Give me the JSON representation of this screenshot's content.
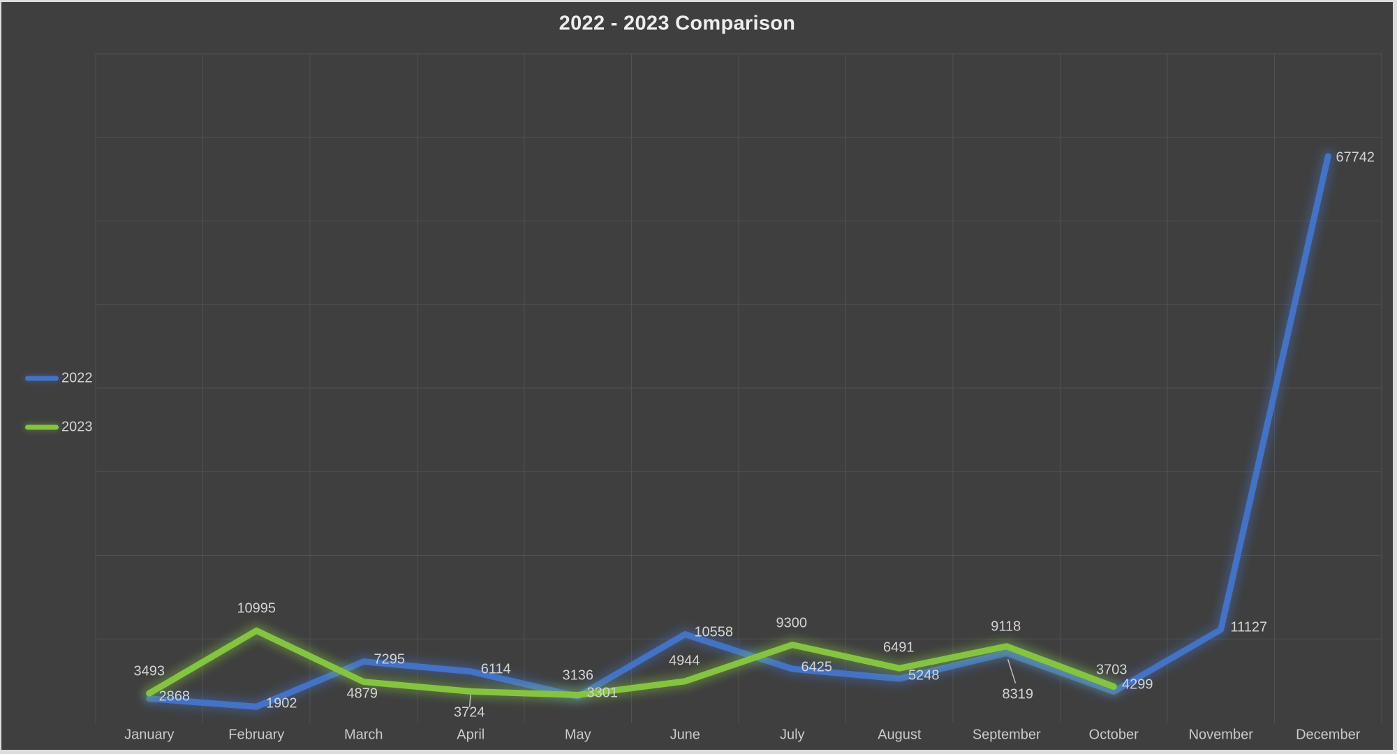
{
  "chart_data": {
    "type": "line",
    "title": "2022 - 2023 Comparison",
    "categories": [
      "January",
      "February",
      "March",
      "April",
      "May",
      "June",
      "July",
      "August",
      "September",
      "October",
      "November",
      "December"
    ],
    "series": [
      {
        "name": "2022",
        "color": "#4472C4",
        "values": [
          2868,
          1902,
          7295,
          6114,
          3136,
          10558,
          6425,
          5248,
          8319,
          3703,
          11127,
          67742
        ],
        "label_offsets": [
          [
            36,
            -3
          ],
          [
            36,
            -4
          ],
          [
            37,
            -3
          ],
          [
            36,
            -3
          ],
          [
            0,
            -29
          ],
          [
            41,
            -3
          ],
          [
            35,
            -2
          ],
          [
            35,
            -4
          ],
          [
            16,
            60
          ],
          [
            -3,
            -31
          ],
          [
            40,
            -3
          ],
          [
            39,
            2
          ]
        ],
        "label_leaders": [
          8
        ]
      },
      {
        "name": "2023",
        "color": "#85C441",
        "values": [
          3493,
          10995,
          4879,
          3724,
          3301,
          4944,
          9300,
          6491,
          9118,
          4299
        ],
        "label_offsets": [
          [
            0,
            -31
          ],
          [
            0,
            -31
          ],
          [
            -2,
            17
          ],
          [
            -2,
            31
          ],
          [
            35,
            -2
          ],
          [
            -1,
            -29
          ],
          [
            -1,
            -31
          ],
          [
            -1,
            -29
          ],
          [
            -1,
            -28
          ],
          [
            34,
            -3
          ]
        ],
        "label_leaders": [
          3
        ]
      }
    ],
    "xlabel": "",
    "ylabel": "",
    "ylim": [
      0,
      80000
    ],
    "y_major": 10000,
    "grid": true,
    "y_axis_labels_shown": false,
    "legend_position": "left"
  },
  "theme": {
    "background": "#3F3F3F",
    "gridline": "#515151",
    "frame_border": "#DCDCDC",
    "title_color": "#EDEDED",
    "data_label_color": "#D3D3D3",
    "axis_label_color": "#C9C9C9",
    "legend_text_color": "#D3D3D3",
    "leader_line_color": "#BFBFBF"
  }
}
